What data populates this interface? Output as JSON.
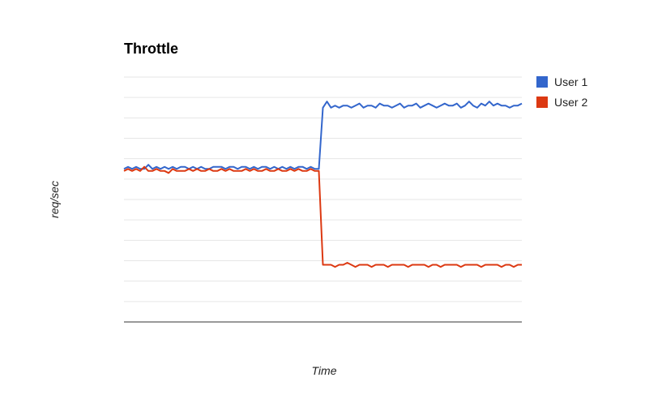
{
  "chart_data": {
    "type": "line",
    "title": "Throttle",
    "xlabel": "Time",
    "ylabel": "req/sec",
    "ylim": [
      0,
      12
    ],
    "grid": true,
    "x_tick_labels": false,
    "y_tick_labels": false,
    "legend_position": "right",
    "series": [
      {
        "name": "User 1",
        "color": "#3366CC",
        "values": [
          7.5,
          7.6,
          7.5,
          7.6,
          7.5,
          7.5,
          7.7,
          7.5,
          7.6,
          7.5,
          7.6,
          7.5,
          7.6,
          7.5,
          7.6,
          7.6,
          7.5,
          7.6,
          7.5,
          7.6,
          7.5,
          7.5,
          7.6,
          7.6,
          7.6,
          7.5,
          7.6,
          7.6,
          7.5,
          7.6,
          7.6,
          7.5,
          7.6,
          7.5,
          7.6,
          7.6,
          7.5,
          7.6,
          7.5,
          7.6,
          7.5,
          7.6,
          7.5,
          7.6,
          7.6,
          7.5,
          7.6,
          7.5,
          7.5,
          10.5,
          10.8,
          10.5,
          10.6,
          10.5,
          10.6,
          10.6,
          10.5,
          10.6,
          10.7,
          10.5,
          10.6,
          10.6,
          10.5,
          10.7,
          10.6,
          10.6,
          10.5,
          10.6,
          10.7,
          10.5,
          10.6,
          10.6,
          10.7,
          10.5,
          10.6,
          10.7,
          10.6,
          10.5,
          10.6,
          10.7,
          10.6,
          10.6,
          10.7,
          10.5,
          10.6,
          10.8,
          10.6,
          10.5,
          10.7,
          10.6,
          10.8,
          10.6,
          10.7,
          10.6,
          10.6,
          10.5,
          10.6,
          10.6,
          10.7
        ]
      },
      {
        "name": "User 2",
        "color": "#DC3912",
        "values": [
          7.4,
          7.5,
          7.4,
          7.5,
          7.4,
          7.6,
          7.4,
          7.4,
          7.5,
          7.4,
          7.4,
          7.3,
          7.5,
          7.4,
          7.4,
          7.4,
          7.5,
          7.4,
          7.5,
          7.4,
          7.4,
          7.5,
          7.4,
          7.4,
          7.5,
          7.4,
          7.5,
          7.4,
          7.4,
          7.4,
          7.5,
          7.4,
          7.5,
          7.4,
          7.4,
          7.5,
          7.4,
          7.4,
          7.5,
          7.4,
          7.4,
          7.5,
          7.4,
          7.5,
          7.4,
          7.4,
          7.5,
          7.4,
          7.4,
          2.8,
          2.8,
          2.8,
          2.7,
          2.8,
          2.8,
          2.9,
          2.8,
          2.7,
          2.8,
          2.8,
          2.8,
          2.7,
          2.8,
          2.8,
          2.8,
          2.7,
          2.8,
          2.8,
          2.8,
          2.8,
          2.7,
          2.8,
          2.8,
          2.8,
          2.8,
          2.7,
          2.8,
          2.8,
          2.7,
          2.8,
          2.8,
          2.8,
          2.8,
          2.7,
          2.8,
          2.8,
          2.8,
          2.8,
          2.7,
          2.8,
          2.8,
          2.8,
          2.8,
          2.7,
          2.8,
          2.8,
          2.7,
          2.8,
          2.8
        ]
      }
    ]
  }
}
